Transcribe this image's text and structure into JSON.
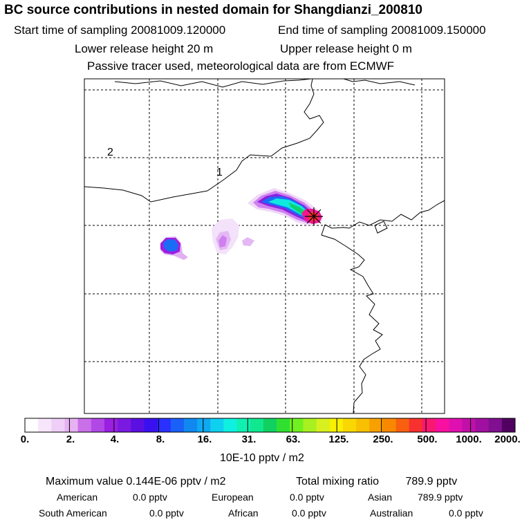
{
  "header": {
    "title": "BC  source contributions in nested domain for Shangdianzi_200810",
    "start_time": "Start time of sampling 20081009.120000",
    "end_time": "End time of sampling 20081009.150000",
    "lower_release": "Lower release height   20 m",
    "upper_release": "Upper release height    0 m",
    "passive_note": "Passive tracer used, meteorological data are from ECMWF"
  },
  "map": {
    "grid_labels": [
      "2",
      "1"
    ],
    "station_marker": "receptor-star-icon"
  },
  "colorbar": {
    "colors": [
      "#ffffff",
      "#f7e6fb",
      "#efcff7",
      "#e6b2f2",
      "#c970e8",
      "#b148e6",
      "#9a1fe0",
      "#7a1ae0",
      "#5a10e0",
      "#3a10f0",
      "#2a30ff",
      "#1a60f8",
      "#1088f0",
      "#10a8f0",
      "#10d0f0",
      "#10f0e0",
      "#10f0b0",
      "#10e890",
      "#10d060",
      "#30e030",
      "#70f020",
      "#a8f020",
      "#d8f020",
      "#f8f000",
      "#f8d800",
      "#f8c000",
      "#f8a000",
      "#f88800",
      "#f86010",
      "#f83030",
      "#f81870",
      "#f810a0",
      "#e010b0",
      "#c010a8",
      "#a010a0",
      "#801090",
      "#500060"
    ],
    "tick_labels": [
      "0.",
      "2.",
      "4.",
      "8.",
      "16.",
      "31.",
      "63.",
      "125.",
      "250.",
      "500.",
      "1000.",
      "2000."
    ],
    "unit": "10E-10 pptv / m2"
  },
  "stats": {
    "max_label": "Maximum value  0.144E-06 pptv / m2",
    "total_label": "Total mixing ratio",
    "total_value": "789.9 pptv",
    "rows": [
      [
        {
          "name": "American",
          "value": "0.0 pptv"
        },
        {
          "name": "European",
          "value": "0.0 pptv"
        },
        {
          "name": "Asian",
          "value": "789.9 pptv"
        }
      ],
      [
        {
          "name": "South American",
          "value": "0.0 pptv"
        },
        {
          "name": "African",
          "value": "0.0 pptv"
        },
        {
          "name": "Australian",
          "value": "0.0 pptv"
        }
      ]
    ]
  }
}
